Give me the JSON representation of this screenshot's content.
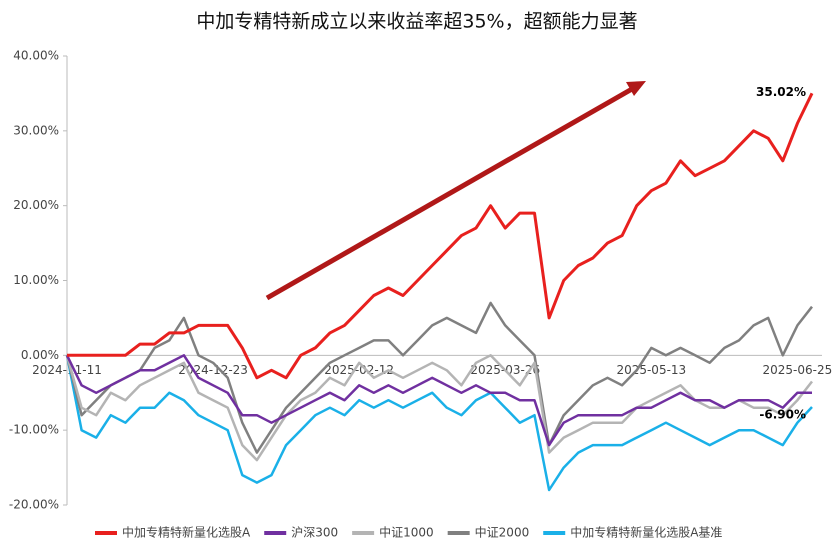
{
  "chart_data": {
    "type": "line",
    "title": "中加专精特新成立以来收益率超35%，超额能力显著",
    "categories": [
      "2024-11-11",
      null,
      null,
      null,
      null,
      null,
      null,
      null,
      null,
      null,
      "2024-12-23",
      null,
      null,
      null,
      null,
      null,
      null,
      null,
      null,
      null,
      "2025-02-12",
      null,
      null,
      null,
      null,
      null,
      null,
      null,
      null,
      null,
      "2025-03-26",
      null,
      null,
      null,
      null,
      null,
      null,
      null,
      null,
      null,
      "2025-05-13",
      null,
      null,
      null,
      null,
      null,
      null,
      null,
      null,
      null,
      "2025-06-25",
      null
    ],
    "series": [
      {
        "name": "中加专精特新量化选股A",
        "color": "#e8201e",
        "values": [
          0,
          0,
          0,
          0,
          0,
          1.5,
          1.5,
          3,
          3,
          4,
          4,
          4,
          1,
          -3,
          -2,
          -3,
          0,
          1,
          3,
          4,
          6,
          8,
          9,
          8,
          10,
          12,
          14,
          16,
          17,
          20,
          17,
          19,
          19,
          5,
          10,
          12,
          13,
          15,
          16,
          20,
          22,
          23,
          26,
          24,
          25,
          26,
          28,
          30,
          29,
          26,
          31,
          35.02
        ]
      },
      {
        "name": "沪深300",
        "color": "#7030a0",
        "values": [
          0,
          -4,
          -5,
          -4,
          -3,
          -2,
          -2,
          -1,
          0,
          -3,
          -4,
          -5,
          -8,
          -8,
          -9,
          -8,
          -7,
          -6,
          -5,
          -6,
          -4,
          -5,
          -4,
          -5,
          -4,
          -3,
          -4,
          -5,
          -4,
          -5,
          -5,
          -6,
          -6,
          -12,
          -9,
          -8,
          -8,
          -8,
          -8,
          -7,
          -7,
          -6,
          -5,
          -6,
          -6,
          -7,
          -6,
          -6,
          -6,
          -7,
          -5,
          -5
        ]
      },
      {
        "name": "中证1000",
        "color": "#b4b4b4",
        "values": [
          0,
          -7,
          -8,
          -5,
          -6,
          -4,
          -3,
          -2,
          -1,
          -5,
          -6,
          -7,
          -12,
          -14,
          -11,
          -8,
          -6,
          -5,
          -3,
          -4,
          -1,
          -3,
          -2,
          -3,
          -2,
          -1,
          -2,
          -4,
          -1,
          0,
          -2,
          -4,
          -1,
          -13,
          -11,
          -10,
          -9,
          -9,
          -9,
          -7,
          -6,
          -5,
          -4,
          -6,
          -7,
          -7,
          -6,
          -7,
          -7,
          -8,
          -6,
          -3.5
        ]
      },
      {
        "name": "中证2000",
        "color": "#808080",
        "values": [
          0,
          -8,
          -6,
          -4,
          -3,
          -2,
          1,
          2,
          5,
          0,
          -1,
          -3,
          -9,
          -13,
          -10,
          -7,
          -5,
          -3,
          -1,
          0,
          1,
          2,
          2,
          0,
          2,
          4,
          5,
          4,
          3,
          7,
          4,
          2,
          0,
          -12,
          -8,
          -6,
          -4,
          -3,
          -4,
          -2,
          1,
          0,
          1,
          0,
          -1,
          1,
          2,
          4,
          5,
          0,
          4,
          6.5
        ]
      },
      {
        "name": "中加专精特新量化选股A基准",
        "color": "#1ab0e8",
        "values": [
          0,
          -10,
          -11,
          -8,
          -9,
          -7,
          -7,
          -5,
          -6,
          -8,
          -9,
          -10,
          -16,
          -17,
          -16,
          -12,
          -10,
          -8,
          -7,
          -8,
          -6,
          -7,
          -6,
          -7,
          -6,
          -5,
          -7,
          -8,
          -6,
          -5,
          -7,
          -9,
          -8,
          -18,
          -15,
          -13,
          -12,
          -12,
          -12,
          -11,
          -10,
          -9,
          -10,
          -11,
          -12,
          -11,
          -10,
          -10,
          -11,
          -12,
          -9,
          -6.9
        ]
      }
    ],
    "annotations": [
      {
        "text": "35.02%",
        "series": 0
      },
      {
        "text": "-6.90%",
        "series": 4
      }
    ],
    "ylim": [
      -20,
      40
    ],
    "yticks": [
      {
        "value": -20,
        "label": "-20.00%"
      },
      {
        "value": -10,
        "label": "-10.00%"
      },
      {
        "value": 0,
        "label": "0.00%"
      },
      {
        "value": 10,
        "label": "10.00%"
      },
      {
        "value": 20,
        "label": "20.00%"
      },
      {
        "value": 30,
        "label": "30.00%"
      },
      {
        "value": 40,
        "label": "40.00%"
      }
    ],
    "grid": false,
    "legend": "bottom"
  }
}
